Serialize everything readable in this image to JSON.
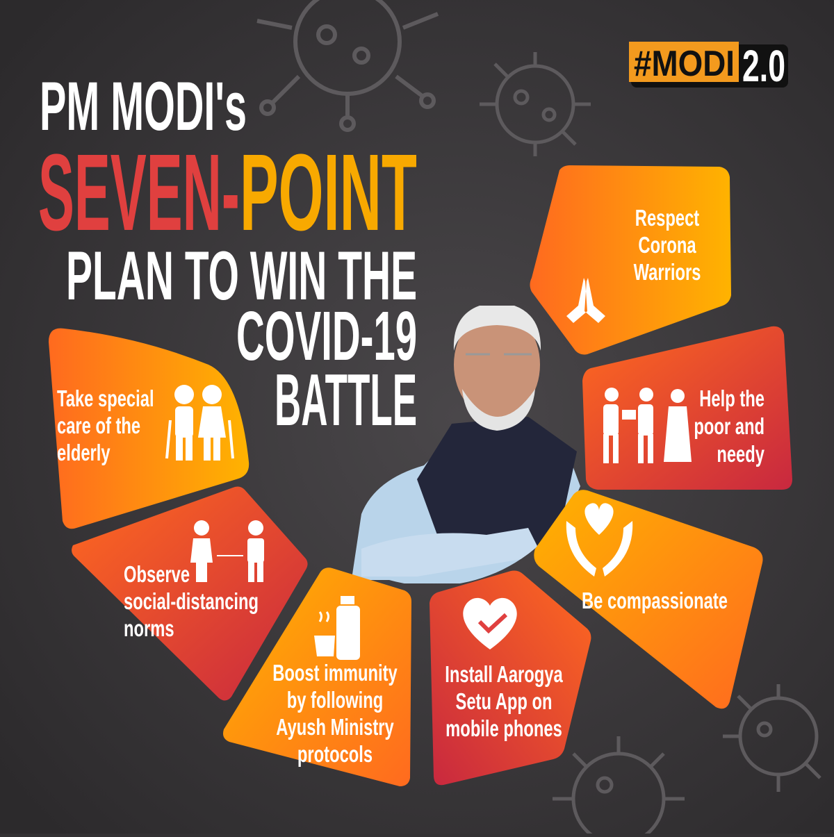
{
  "badge": {
    "hashtag": "#MODI",
    "version": "2.0"
  },
  "title": {
    "line1": "PM MODI's",
    "line2a": "SEVEN-",
    "line2b": "POINT",
    "line3": "PLAN TO WIN THE",
    "line4": "COVID-19",
    "line5": "BATTLE"
  },
  "colors": {
    "background": "#333133",
    "red": "#e0403f",
    "orange": "#f8a900",
    "segment_orange": "#ff7a1a",
    "segment_crimson": "#c8283f"
  },
  "points": [
    {
      "icon": "namaste-hands-icon",
      "lines": [
        "Respect",
        "Corona",
        "Warriors"
      ]
    },
    {
      "icon": "helping-people-icon",
      "lines": [
        "Help the",
        "poor and",
        "needy"
      ]
    },
    {
      "icon": "heart-in-hands-icon",
      "lines": [
        "Be compassionate"
      ]
    },
    {
      "icon": "heart-check-icon",
      "lines": [
        "Install Aarogya",
        "Setu App on",
        "mobile phones"
      ]
    },
    {
      "icon": "tea-cup-bottle-icon",
      "lines": [
        "Boost immunity",
        "by following",
        "Ayush Ministry",
        "protocols"
      ]
    },
    {
      "icon": "social-distancing-icon",
      "lines": [
        "Observe",
        "social-distancing",
        "norms"
      ]
    },
    {
      "icon": "elderly-couple-icon",
      "lines": [
        "Take special",
        "care of the",
        "elderly"
      ]
    }
  ]
}
